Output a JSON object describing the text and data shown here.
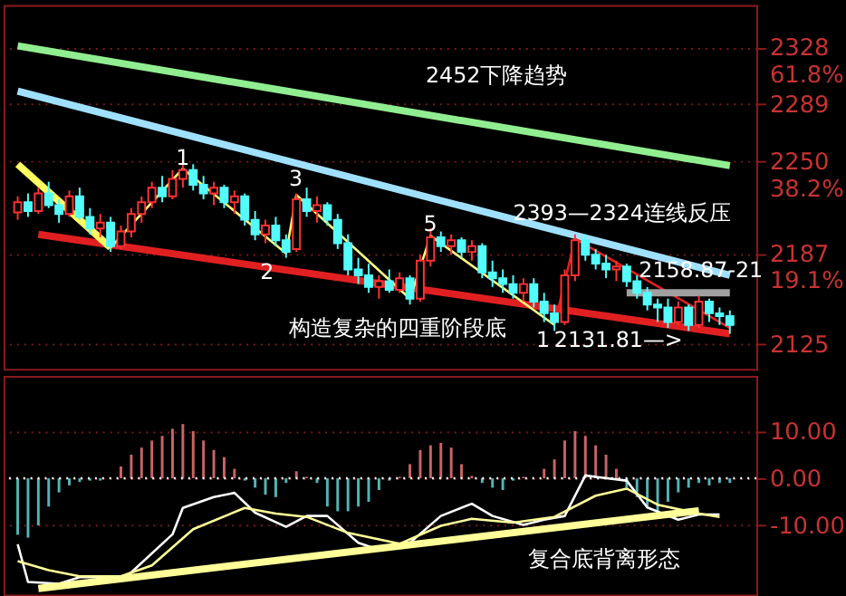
{
  "chart_data": [
    {
      "type": "candlestick",
      "categories": [
        null,
        null,
        null,
        null,
        null,
        null,
        null,
        null,
        null,
        null,
        null,
        null,
        null,
        null,
        null,
        null,
        null,
        null,
        null,
        null,
        null,
        null,
        null,
        null,
        null,
        null,
        null,
        null,
        null,
        null,
        null,
        null,
        null,
        null,
        null,
        null,
        null,
        null,
        null,
        null,
        null,
        null,
        null,
        null,
        null,
        null,
        null,
        null,
        null,
        null,
        null,
        null,
        null,
        null,
        null,
        null,
        null,
        null,
        null,
        null,
        null,
        null,
        null,
        null,
        null,
        null,
        null,
        null,
        null,
        null
      ],
      "ohlc": [
        [
          2215,
          2226,
          2210,
          2222
        ],
        [
          2222,
          2228,
          2212,
          2216
        ],
        [
          2216,
          2232,
          2214,
          2228
        ],
        [
          2228,
          2236,
          2218,
          2220
        ],
        [
          2220,
          2224,
          2208,
          2214
        ],
        [
          2214,
          2230,
          2212,
          2226
        ],
        [
          2226,
          2232,
          2210,
          2212
        ],
        [
          2212,
          2218,
          2200,
          2204
        ],
        [
          2204,
          2214,
          2198,
          2208
        ],
        [
          2208,
          2212,
          2188,
          2192
        ],
        [
          2192,
          2206,
          2190,
          2202
        ],
        [
          2202,
          2218,
          2198,
          2214
        ],
        [
          2214,
          2226,
          2208,
          2222
        ],
        [
          2222,
          2236,
          2218,
          2232
        ],
        [
          2232,
          2240,
          2222,
          2226
        ],
        [
          2226,
          2244,
          2224,
          2238
        ],
        [
          2238,
          2250,
          2232,
          2244
        ],
        [
          2244,
          2248,
          2230,
          2234
        ],
        [
          2234,
          2240,
          2224,
          2228
        ],
        [
          2228,
          2236,
          2220,
          2232
        ],
        [
          2232,
          2234,
          2218,
          2222
        ],
        [
          2222,
          2230,
          2214,
          2226
        ],
        [
          2226,
          2228,
          2206,
          2210
        ],
        [
          2210,
          2216,
          2196,
          2200
        ],
        [
          2200,
          2210,
          2194,
          2206
        ],
        [
          2206,
          2212,
          2192,
          2196
        ],
        [
          2196,
          2200,
          2184,
          2188
        ],
        [
          2190,
          2228,
          2188,
          2224
        ],
        [
          2224,
          2232,
          2212,
          2216
        ],
        [
          2216,
          2226,
          2208,
          2220
        ],
        [
          2220,
          2222,
          2206,
          2210
        ],
        [
          2210,
          2214,
          2190,
          2194
        ],
        [
          2194,
          2200,
          2172,
          2176
        ],
        [
          2176,
          2184,
          2166,
          2172
        ],
        [
          2172,
          2180,
          2160,
          2164
        ],
        [
          2164,
          2172,
          2156,
          2168
        ],
        [
          2168,
          2176,
          2160,
          2162
        ],
        [
          2162,
          2174,
          2160,
          2170
        ],
        [
          2170,
          2172,
          2152,
          2156
        ],
        [
          2156,
          2186,
          2154,
          2182
        ],
        [
          2182,
          2204,
          2178,
          2198
        ],
        [
          2198,
          2202,
          2188,
          2192
        ],
        [
          2192,
          2200,
          2186,
          2196
        ],
        [
          2196,
          2198,
          2184,
          2188
        ],
        [
          2188,
          2196,
          2182,
          2192
        ],
        [
          2192,
          2194,
          2170,
          2174
        ],
        [
          2174,
          2182,
          2164,
          2170
        ],
        [
          2170,
          2176,
          2160,
          2166
        ],
        [
          2166,
          2172,
          2156,
          2160
        ],
        [
          2160,
          2170,
          2154,
          2166
        ],
        [
          2166,
          2170,
          2150,
          2154
        ],
        [
          2154,
          2160,
          2140,
          2146
        ],
        [
          2146,
          2152,
          2134,
          2140
        ],
        [
          2140,
          2176,
          2138,
          2172
        ],
        [
          2172,
          2200,
          2168,
          2196
        ],
        [
          2196,
          2200,
          2182,
          2186
        ],
        [
          2186,
          2190,
          2176,
          2180
        ],
        [
          2180,
          2186,
          2170,
          2176
        ],
        [
          2176,
          2182,
          2168,
          2178
        ],
        [
          2178,
          2180,
          2164,
          2168
        ],
        [
          2168,
          2172,
          2156,
          2160
        ],
        [
          2160,
          2164,
          2148,
          2152
        ],
        [
          2152,
          2156,
          2140,
          2150
        ],
        [
          2150,
          2156,
          2136,
          2140
        ],
        [
          2140,
          2154,
          2138,
          2150
        ],
        [
          2150,
          2152,
          2134,
          2138
        ],
        [
          2138,
          2158,
          2136,
          2154
        ],
        [
          2154,
          2156,
          2140,
          2146
        ],
        [
          2146,
          2150,
          2138,
          2144
        ],
        [
          2144,
          2148,
          2132,
          2138
        ]
      ],
      "colors": [
        "#ff3232",
        "#54fcfc",
        "#ff3232",
        "#54fcfc",
        "#54fcfc",
        "#ff3232",
        "#54fcfc",
        "#54fcfc",
        "#ff3232",
        "#54fcfc",
        "#ff3232",
        "#ff3232",
        "#ff3232",
        "#ff3232",
        "#54fcfc",
        "#ff3232",
        "#ff3232",
        "#54fcfc",
        "#54fcfc",
        "#ff3232",
        "#54fcfc",
        "#ff3232",
        "#54fcfc",
        "#54fcfc",
        "#ff3232",
        "#54fcfc",
        "#54fcfc",
        "#ff3232",
        "#54fcfc",
        "#ff3232",
        "#54fcfc",
        "#54fcfc",
        "#54fcfc",
        "#54fcfc",
        "#54fcfc",
        "#ff3232",
        "#54fcfc",
        "#ff3232",
        "#54fcfc",
        "#ff3232",
        "#ff3232",
        "#54fcfc",
        "#ff3232",
        "#54fcfc",
        "#ff3232",
        "#54fcfc",
        "#54fcfc",
        "#54fcfc",
        "#54fcfc",
        "#ff3232",
        "#54fcfc",
        "#54fcfc",
        "#54fcfc",
        "#ff3232",
        "#ff3232",
        "#54fcfc",
        "#54fcfc",
        "#54fcfc",
        "#ff3232",
        "#54fcfc",
        "#54fcfc",
        "#54fcfc",
        "#54fcfc",
        "#54fcfc",
        "#ff3232",
        "#54fcfc",
        "#ff3232",
        "#54fcfc",
        "#54fcfc",
        "#54fcfc"
      ],
      "series": [
        {
          "type": "line",
          "color": "#90ee90",
          "values": [
            2329,
            null,
            null,
            null,
            null,
            null,
            null,
            null,
            null,
            null,
            null,
            null,
            null,
            null,
            null,
            null,
            null,
            null,
            null,
            null,
            null,
            null,
            null,
            null,
            null,
            null,
            null,
            null,
            null,
            null,
            null,
            null,
            null,
            null,
            null,
            null,
            null,
            null,
            null,
            null,
            null,
            null,
            null,
            null,
            null,
            null,
            null,
            null,
            null,
            null,
            null,
            null,
            null,
            null,
            null,
            null,
            null,
            null,
            null,
            null,
            null,
            null,
            null,
            null,
            null,
            null,
            null,
            null,
            null,
            2247
          ]
        },
        {
          "type": "line",
          "color": "#a0e0ff",
          "values": [
            2298,
            null,
            null,
            null,
            null,
            null,
            null,
            null,
            null,
            null,
            null,
            null,
            null,
            null,
            null,
            null,
            null,
            null,
            null,
            null,
            null,
            null,
            null,
            null,
            null,
            null,
            null,
            null,
            null,
            null,
            null,
            null,
            null,
            null,
            null,
            null,
            null,
            null,
            null,
            null,
            null,
            null,
            null,
            null,
            null,
            null,
            null,
            null,
            null,
            null,
            null,
            null,
            null,
            null,
            null,
            null,
            null,
            null,
            null,
            null,
            null,
            null,
            null,
            null,
            null,
            null,
            null,
            null,
            null,
            2172
          ]
        },
        {
          "type": "line",
          "color": "#e02020",
          "values": [
            null,
            null,
            2200,
            null,
            null,
            null,
            null,
            null,
            null,
            null,
            null,
            null,
            null,
            null,
            null,
            null,
            null,
            null,
            null,
            null,
            null,
            null,
            null,
            null,
            null,
            null,
            null,
            null,
            null,
            null,
            null,
            null,
            null,
            null,
            null,
            null,
            null,
            null,
            null,
            null,
            null,
            null,
            null,
            null,
            null,
            null,
            null,
            null,
            null,
            null,
            null,
            null,
            null,
            null,
            null,
            null,
            null,
            null,
            null,
            null,
            null,
            null,
            null,
            null,
            null,
            null,
            null,
            null,
            null,
            2132
          ]
        },
        {
          "type": "line",
          "color": "#ffff60",
          "values": [
            2248,
            null,
            null,
            null,
            null,
            null,
            null,
            null,
            null,
            2191,
            null,
            null,
            null,
            null,
            null,
            null,
            null,
            null,
            null,
            null,
            null,
            null,
            null,
            null,
            null,
            null,
            null,
            null,
            null,
            null,
            null,
            null,
            null,
            null,
            null,
            null,
            null,
            null,
            null,
            null,
            null,
            null,
            null,
            null,
            null,
            null,
            null,
            null,
            null,
            null,
            null,
            null,
            null,
            null,
            null,
            null,
            null,
            null,
            null,
            null,
            null,
            null,
            null,
            null,
            null,
            null,
            null,
            null,
            null,
            null
          ]
        },
        {
          "type": "line",
          "color": "#ffff80",
          "values": [
            null,
            null,
            null,
            null,
            null,
            null,
            null,
            null,
            null,
            2191,
            null,
            null,
            null,
            null,
            null,
            null,
            2245,
            null,
            null,
            null,
            null,
            null,
            null,
            null,
            null,
            null,
            2187,
            2227,
            null,
            null,
            null,
            null,
            null,
            null,
            null,
            null,
            null,
            null,
            2156,
            null,
            2199,
            null,
            null,
            null,
            null,
            null,
            null,
            null,
            null,
            null,
            null,
            null,
            2138,
            null,
            null,
            null,
            null,
            null,
            null,
            null,
            null,
            null,
            null,
            null,
            null,
            null,
            null,
            null,
            null,
            null
          ]
        },
        {
          "type": "line",
          "color": "#e02020",
          "values": [
            null,
            null,
            null,
            null,
            null,
            null,
            null,
            null,
            null,
            null,
            null,
            null,
            null,
            null,
            null,
            null,
            null,
            null,
            null,
            null,
            null,
            null,
            null,
            null,
            null,
            null,
            null,
            null,
            null,
            null,
            null,
            null,
            null,
            null,
            null,
            null,
            null,
            null,
            null,
            null,
            null,
            null,
            null,
            null,
            null,
            null,
            null,
            null,
            null,
            null,
            null,
            null,
            2138,
            null,
            2197,
            null,
            null,
            null,
            null,
            null,
            null,
            null,
            null,
            null,
            null,
            null,
            null,
            null,
            null,
            2136
          ]
        },
        {
          "type": "line",
          "color": "#a0a0a0",
          "values": [
            null,
            null,
            null,
            null,
            null,
            null,
            null,
            null,
            null,
            null,
            null,
            null,
            null,
            null,
            null,
            null,
            null,
            null,
            null,
            null,
            null,
            null,
            null,
            null,
            null,
            null,
            null,
            null,
            null,
            null,
            null,
            null,
            null,
            null,
            null,
            null,
            null,
            null,
            null,
            null,
            null,
            null,
            null,
            null,
            null,
            null,
            null,
            null,
            null,
            null,
            null,
            null,
            null,
            null,
            null,
            null,
            null,
            null,
            null,
            2160,
            null,
            null,
            null,
            null,
            null,
            null,
            null,
            null,
            null,
            2160
          ]
        }
      ],
      "annotations": [
        "2452下降趋势",
        "2393—2324连线反压",
        "2158.87-21",
        "构造复杂的四重阶段底",
        "2131.81—>",
        "1",
        "2",
        "3",
        "5",
        "1"
      ],
      "ylim": [
        2108,
        2357
      ],
      "yticks": [
        {
          "value": 2125,
          "label": "2125"
        },
        {
          "value": 2187,
          "label": "2187\n19.1%"
        },
        {
          "value": 2250,
          "label": "2250\n38.2%"
        },
        {
          "value": 2289,
          "label": "2289"
        },
        {
          "value": 2328,
          "label": "2328\n61.8%"
        }
      ],
      "grid": "y",
      "tick_labels": "y"
    },
    {
      "type": "bar",
      "categories": [
        null,
        null,
        null,
        null,
        null,
        null,
        null,
        null,
        null,
        null,
        null,
        null,
        null,
        null,
        null,
        null,
        null,
        null,
        null,
        null,
        null,
        null,
        null,
        null,
        null,
        null,
        null,
        null,
        null,
        null,
        null,
        null,
        null,
        null,
        null,
        null,
        null,
        null,
        null,
        null,
        null,
        null,
        null,
        null,
        null,
        null,
        null,
        null,
        null,
        null,
        null,
        null,
        null,
        null,
        null,
        null,
        null,
        null,
        null,
        null,
        null,
        null,
        null,
        null,
        null,
        null,
        null,
        null,
        null,
        null
      ],
      "series": [
        {
          "type": "bar",
          "values": [
            -12,
            -12.6,
            -10,
            -6,
            -3,
            -1.5,
            -0.8,
            -0.5,
            -0.5,
            null,
            2.5,
            5,
            6.5,
            8,
            9,
            10.5,
            11.5,
            10,
            8,
            6,
            4.5,
            2,
            -0.5,
            -2,
            -3.5,
            -4,
            -1,
            1.5,
            0.3,
            -1,
            -6,
            -7,
            -7,
            -6,
            -5,
            -2.5,
            -0.5,
            0.3,
            3,
            6,
            7,
            7.5,
            6.5,
            3,
            0.5,
            -1,
            -2,
            -2.5,
            -0.5,
            0.3,
            null,
            2,
            4,
            8,
            10,
            9,
            7,
            5,
            2,
            -2,
            -4,
            -6,
            -7,
            -5,
            -3,
            -2,
            -1,
            -1.5,
            -1,
            -1
          ],
          "colors": [
            "#50b4b4",
            "#50b4b4",
            "#50b4b4",
            "#50b4b4",
            "#50b4b4",
            "#50b4b4",
            "#50b4b4",
            "#50b4b4",
            "#50b4b4",
            "#50b4b4",
            "#c86464",
            "#c86464",
            "#c86464",
            "#c86464",
            "#c86464",
            "#c86464",
            "#c86464",
            "#c86464",
            "#c86464",
            "#c86464",
            "#c86464",
            "#c86464",
            "#50b4b4",
            "#50b4b4",
            "#50b4b4",
            "#50b4b4",
            "#50b4b4",
            "#c86464",
            "#c86464",
            "#50b4b4",
            "#50b4b4",
            "#50b4b4",
            "#50b4b4",
            "#50b4b4",
            "#50b4b4",
            "#50b4b4",
            "#50b4b4",
            "#c86464",
            "#c86464",
            "#c86464",
            "#c86464",
            "#c86464",
            "#c86464",
            "#c86464",
            "#c86464",
            "#50b4b4",
            "#50b4b4",
            "#50b4b4",
            "#50b4b4",
            "#c86464",
            "#50b4b4",
            "#c86464",
            "#c86464",
            "#c86464",
            "#c86464",
            "#c86464",
            "#c86464",
            "#c86464",
            "#c86464",
            "#50b4b4",
            "#50b4b4",
            "#50b4b4",
            "#50b4b4",
            "#50b4b4",
            "#50b4b4",
            "#50b4b4",
            "#50b4b4",
            "#50b4b4",
            "#50b4b4",
            "#50b4b4"
          ]
        },
        {
          "type": "line",
          "color": "#ffffff",
          "values": [
            -14,
            -22,
            null,
            null,
            -22.4,
            null,
            -21,
            null,
            null,
            null,
            -21,
            -20,
            null,
            null,
            null,
            -11.9,
            -6.3,
            null,
            null,
            -4,
            null,
            -3.1,
            null,
            -7.3,
            null,
            null,
            -10.3,
            null,
            -8,
            null,
            -8,
            null,
            null,
            -13.7,
            null,
            -15.2,
            null,
            null,
            -13.7,
            null,
            null,
            -8,
            null,
            null,
            -5.4,
            null,
            -8,
            null,
            null,
            -9.9,
            null,
            -8.8,
            null,
            -8,
            null,
            0.6,
            0.3,
            null,
            null,
            -0.5,
            null,
            -6.2,
            null,
            null,
            -8.8,
            null,
            -7.7,
            null,
            -7.7,
            null
          ]
        },
        {
          "type": "line",
          "color": "#ffff99",
          "values": [
            -17.6,
            null,
            null,
            -19.5,
            null,
            null,
            -20.8,
            null,
            null,
            null,
            -20.8,
            null,
            null,
            -18.5,
            null,
            null,
            null,
            -10.8,
            null,
            null,
            null,
            null,
            -6.3,
            null,
            null,
            -7.5,
            null,
            null,
            -8.2,
            null,
            null,
            null,
            -11.6,
            null,
            null,
            null,
            null,
            -13.9,
            null,
            null,
            null,
            -10.1,
            null,
            null,
            -8.6,
            null,
            null,
            null,
            -9.4,
            null,
            null,
            null,
            -8.2,
            null,
            null,
            null,
            -3.7,
            null,
            null,
            -2.2,
            null,
            null,
            -5.6,
            null,
            null,
            null,
            -7.5,
            null,
            -8.2,
            null
          ]
        },
        {
          "type": "line",
          "color": "#ffff99",
          "values": [
            null,
            null,
            -23.4,
            null,
            null,
            null,
            null,
            null,
            null,
            null,
            null,
            null,
            null,
            null,
            null,
            null,
            null,
            null,
            null,
            null,
            null,
            null,
            null,
            null,
            null,
            null,
            null,
            null,
            null,
            null,
            null,
            null,
            null,
            null,
            null,
            null,
            null,
            null,
            null,
            null,
            null,
            null,
            null,
            null,
            null,
            null,
            null,
            null,
            null,
            null,
            null,
            null,
            null,
            null,
            null,
            null,
            null,
            null,
            null,
            null,
            null,
            null,
            null,
            null,
            null,
            null,
            -6.9,
            null,
            null,
            null
          ]
        }
      ],
      "ref_lines": [
        {
          "axis": "y",
          "value": 0,
          "color": "#ffffff",
          "line_style": "dotted"
        }
      ],
      "annotations": [
        "复合底背离形态"
      ],
      "ylim": [
        -24.7,
        21.7
      ],
      "yticks": [
        {
          "value": -10,
          "label": "-10.00"
        },
        {
          "value": 0,
          "label": "0.00"
        },
        {
          "value": 10,
          "label": "10.00"
        }
      ],
      "grid": "y",
      "tick_labels": "y"
    }
  ]
}
